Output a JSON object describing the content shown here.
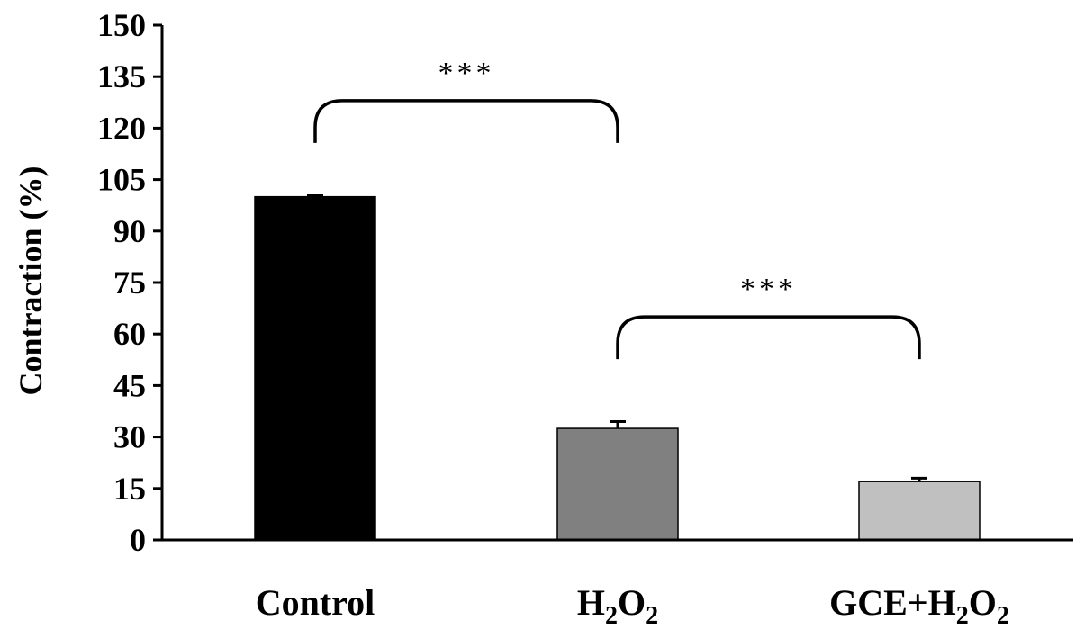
{
  "chart_data": {
    "type": "bar",
    "ylabel": "Contraction (%)",
    "ylim": [
      0,
      150
    ],
    "yticks": [
      0,
      15,
      30,
      45,
      60,
      75,
      90,
      105,
      120,
      135,
      150
    ],
    "grid": false,
    "categories": [
      {
        "label": "Control",
        "parts": [
          {
            "text": "Control",
            "sub": false
          }
        ]
      },
      {
        "label": "H2O2",
        "parts": [
          {
            "text": "H",
            "sub": false
          },
          {
            "text": "2",
            "sub": true
          },
          {
            "text": "O",
            "sub": false
          },
          {
            "text": "2",
            "sub": true
          }
        ]
      },
      {
        "label": "GCE+H2O2",
        "parts": [
          {
            "text": "GCE+H",
            "sub": false
          },
          {
            "text": "2",
            "sub": true
          },
          {
            "text": "O",
            "sub": false
          },
          {
            "text": "2",
            "sub": true
          }
        ]
      }
    ],
    "values": [
      100,
      32.5,
      17
    ],
    "errors": [
      0.3,
      2.0,
      1.0
    ],
    "colors": [
      "#000000",
      "#808080",
      "#c0c0c0"
    ],
    "significance": [
      {
        "from": 0,
        "to": 1,
        "y": 128,
        "label": "***"
      },
      {
        "from": 1,
        "to": 2,
        "y": 65,
        "label": "***"
      }
    ]
  }
}
